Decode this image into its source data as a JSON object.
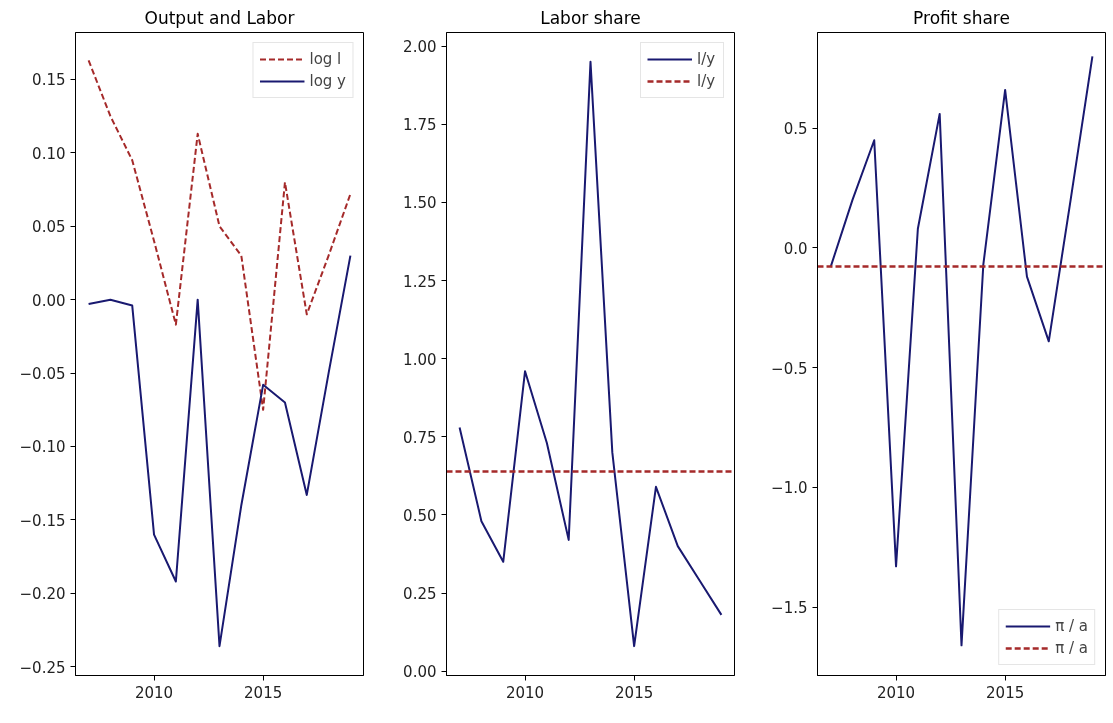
{
  "chart_data": [
    {
      "type": "line",
      "title": "Output and Labor",
      "x": [
        2007,
        2008,
        2009,
        2010,
        2011,
        2012,
        2013,
        2014,
        2015,
        2016,
        2017,
        2018,
        2019
      ],
      "xlim": [
        2006.4,
        2019.6
      ],
      "xticks": [
        2010,
        2015
      ],
      "ylim": [
        -0.256,
        0.182
      ],
      "yticks": [
        {
          "value": -0.25,
          "label": "−0.25"
        },
        {
          "value": -0.2,
          "label": "−0.20"
        },
        {
          "value": -0.15,
          "label": "−0.15"
        },
        {
          "value": -0.1,
          "label": "−0.10"
        },
        {
          "value": -0.05,
          "label": "−0.05"
        },
        {
          "value": 0,
          "label": "0.00"
        },
        {
          "value": 0.05,
          "label": "0.05"
        },
        {
          "value": 0.1,
          "label": "0.10"
        },
        {
          "value": 0.15,
          "label": "0.15"
        }
      ],
      "grid": false,
      "legend": "top right",
      "series": [
        {
          "name": "log l",
          "color": "#a52a2a",
          "line_style": "dashed",
          "values": [
            0.163,
            0.125,
            0.095,
            0.04,
            -0.017,
            0.113,
            0.05,
            0.03,
            -0.075,
            0.08,
            -0.01,
            0.03,
            0.072
          ]
        },
        {
          "name": "log y",
          "color": "#191970",
          "line_style": "solid",
          "values": [
            -0.003,
            0.0,
            -0.004,
            -0.16,
            -0.192,
            0.0,
            -0.236,
            -0.14,
            -0.058,
            -0.07,
            -0.133,
            -0.05,
            0.03
          ]
        }
      ]
    },
    {
      "type": "line",
      "title": "Labor share",
      "x": [
        2007,
        2008,
        2009,
        2010,
        2011,
        2012,
        2013,
        2014,
        2015,
        2016,
        2017,
        2018,
        2019
      ],
      "xlim": [
        2006.4,
        2019.6
      ],
      "xticks": [
        2010,
        2015
      ],
      "ylim": [
        -0.014,
        2.044
      ],
      "yticks": [
        {
          "value": 0,
          "label": "0.00"
        },
        {
          "value": 0.25,
          "label": "0.25"
        },
        {
          "value": 0.5,
          "label": "0.50"
        },
        {
          "value": 0.75,
          "label": "0.75"
        },
        {
          "value": 1,
          "label": "1.00"
        },
        {
          "value": 1.25,
          "label": "1.25"
        },
        {
          "value": 1.5,
          "label": "1.50"
        },
        {
          "value": 1.75,
          "label": "1.75"
        },
        {
          "value": 2,
          "label": "2.00"
        }
      ],
      "grid": false,
      "legend": "top right",
      "series": [
        {
          "name": "l/y",
          "color": "#191970",
          "line_style": "solid",
          "values": [
            0.78,
            0.48,
            0.35,
            0.96,
            0.73,
            0.42,
            1.95,
            0.7,
            0.08,
            0.59,
            0.4,
            0.29,
            0.18
          ]
        }
      ],
      "ref_lines": [
        {
          "axis": "y",
          "value": 0.639,
          "label": "l/y",
          "color": "#a52a2a",
          "line_style": "dashed"
        }
      ]
    },
    {
      "type": "line",
      "title": "Profit share",
      "x": [
        2007,
        2008,
        2009,
        2010,
        2011,
        2012,
        2013,
        2014,
        2015,
        2016,
        2017,
        2018,
        2019
      ],
      "xlim": [
        2006.4,
        2019.6
      ],
      "xticks": [
        2010,
        2015
      ],
      "ylim": [
        -1.786,
        0.9
      ],
      "yticks": [
        {
          "value": -1.5,
          "label": "−1.5"
        },
        {
          "value": -1,
          "label": "−1.0"
        },
        {
          "value": -0.5,
          "label": "−0.5"
        },
        {
          "value": 0,
          "label": "0.0"
        },
        {
          "value": 0.5,
          "label": "0.5"
        }
      ],
      "grid": false,
      "legend": "bottom right",
      "series": [
        {
          "name": "π / a",
          "color": "#191970",
          "line_style": "solid",
          "values": [
            -0.08,
            0.2,
            0.45,
            -1.33,
            0.08,
            0.56,
            -1.66,
            -0.07,
            0.66,
            -0.12,
            -0.39,
            0.2,
            0.8
          ]
        }
      ],
      "ref_lines": [
        {
          "axis": "y",
          "value": -0.078,
          "label": "π / a",
          "color": "#a52a2a",
          "line_style": "dashed"
        }
      ]
    }
  ]
}
